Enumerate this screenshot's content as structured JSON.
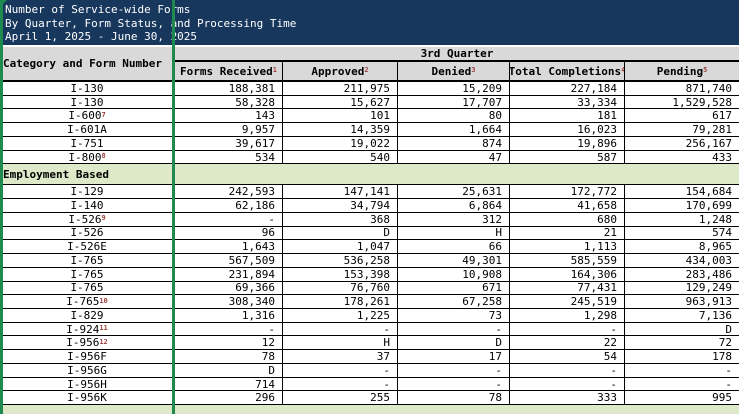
{
  "title": {
    "line1": "Number of Service-wide Forms",
    "line2": "By Quarter, Form Status, and Processing Time",
    "line3": "April 1, 2025 - June 30, 2025"
  },
  "table": {
    "quarter_header": "3rd Quarter",
    "category_header": "Category and Form Number",
    "columns": [
      {
        "label": "Forms Received",
        "footnote": "1"
      },
      {
        "label": "Approved",
        "footnote": "2"
      },
      {
        "label": "Denied",
        "footnote": "3"
      },
      {
        "label": "Total Completions",
        "footnote": "4"
      },
      {
        "label": "Pending",
        "footnote": "5"
      }
    ],
    "rows": [
      {
        "form": "I-130",
        "fn": "",
        "values": [
          "188,381",
          "211,975",
          "15,209",
          "227,184",
          "871,740"
        ]
      },
      {
        "form": "I-130",
        "fn": "",
        "values": [
          "58,328",
          "15,627",
          "17,707",
          "33,334",
          "1,529,528"
        ]
      },
      {
        "form": "I-600",
        "fn": "7",
        "values": [
          "143",
          "101",
          "80",
          "181",
          "617"
        ]
      },
      {
        "form": "I-601A",
        "fn": "",
        "values": [
          "9,957",
          "14,359",
          "1,664",
          "16,023",
          "79,281"
        ]
      },
      {
        "form": "I-751",
        "fn": "",
        "values": [
          "39,617",
          "19,022",
          "874",
          "19,896",
          "256,167"
        ]
      },
      {
        "form": "I-800",
        "fn": "8",
        "values": [
          "534",
          "540",
          "47",
          "587",
          "433"
        ]
      },
      {
        "section": "Employment Based"
      },
      {
        "form": "I-129",
        "fn": "",
        "values": [
          "242,593",
          "147,141",
          "25,631",
          "172,772",
          "154,684"
        ]
      },
      {
        "form": "I-140",
        "fn": "",
        "values": [
          "62,186",
          "34,794",
          "6,864",
          "41,658",
          "170,699"
        ]
      },
      {
        "form": "I-526",
        "fn": "9",
        "values": [
          "-",
          "368",
          "312",
          "680",
          "1,248"
        ]
      },
      {
        "form": "I-526",
        "fn": "",
        "values": [
          "96",
          "D",
          "H",
          "21",
          "574"
        ]
      },
      {
        "form": "I-526E",
        "fn": "",
        "values": [
          "1,643",
          "1,047",
          "66",
          "1,113",
          "8,965"
        ]
      },
      {
        "form": "I-765",
        "fn": "",
        "values": [
          "567,509",
          "536,258",
          "49,301",
          "585,559",
          "434,003"
        ]
      },
      {
        "form": "I-765",
        "fn": "",
        "values": [
          "231,894",
          "153,398",
          "10,908",
          "164,306",
          "283,486"
        ]
      },
      {
        "form": "I-765",
        "fn": "",
        "values": [
          "69,366",
          "76,760",
          "671",
          "77,431",
          "129,249"
        ]
      },
      {
        "form": "I-765",
        "fn": "10",
        "values": [
          "308,340",
          "178,261",
          "67,258",
          "245,519",
          "963,913"
        ]
      },
      {
        "form": "I-829",
        "fn": "",
        "values": [
          "1,316",
          "1,225",
          "73",
          "1,298",
          "7,136"
        ]
      },
      {
        "form": "I-924",
        "fn": "11",
        "values": [
          "-",
          "-",
          "-",
          "-",
          "D"
        ]
      },
      {
        "form": "I-956",
        "fn": "12",
        "values": [
          "12",
          "H",
          "D",
          "22",
          "72"
        ]
      },
      {
        "form": "I-956F",
        "fn": "",
        "values": [
          "78",
          "37",
          "17",
          "54",
          "178"
        ]
      },
      {
        "form": "I-956G",
        "fn": "",
        "values": [
          "D",
          "-",
          "-",
          "-",
          "-"
        ]
      },
      {
        "form": "I-956H",
        "fn": "",
        "values": [
          "714",
          "-",
          "-",
          "-",
          "-"
        ]
      },
      {
        "form": "I-956K",
        "fn": "",
        "values": [
          "296",
          "255",
          "78",
          "333",
          "995"
        ]
      }
    ]
  },
  "colors": {
    "navy": "#17375D",
    "header_gray": "#D9D9D9",
    "section_green": "#DEE9CA",
    "selection_green": "#1E8A50",
    "footnote_red": "#A04040",
    "border_black": "#000000"
  }
}
